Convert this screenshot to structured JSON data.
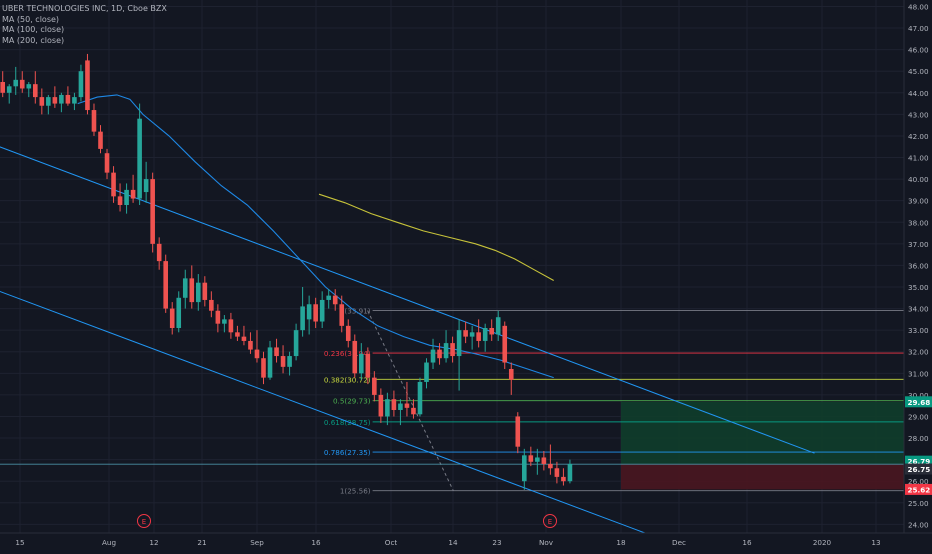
{
  "legend": {
    "symbol": "UBER TECHNOLOGIES INC, 1D, Cboe BZX",
    "indicators": [
      "MA (50, close)",
      "MA (100, close)",
      "MA (200, close)"
    ]
  },
  "colors": {
    "background": "#131722",
    "grid": "#1e2230",
    "up": "#26a69a",
    "down": "#ef5350",
    "ma50": "#2962ff",
    "ma100": "#1e88e5",
    "ma200": "#c7c33a",
    "channel": "#2196f3",
    "fib_0": "#787b86",
    "fib_0236": "#f23645",
    "fib_0382": "#c8d93f",
    "fib_05": "#4caf50",
    "fib_0618": "#089981",
    "fib_0786": "#2196f3",
    "fib_1": "#787b86",
    "profit": "#0f3d2b",
    "loss": "#4a1620",
    "axis_text": "#b2b5be"
  },
  "chart_data": {
    "type": "candlestick",
    "title": "UBER TECHNOLOGIES INC, 1D, Cboe BZX",
    "x_tick_labels": [
      "15",
      "Aug",
      "12",
      "21",
      "Sep",
      "16",
      "Oct",
      "14",
      "23",
      "Nov",
      "18",
      "Dec",
      "16",
      "2020",
      "13"
    ],
    "y_tick_labels": [
      "24.00",
      "25.00",
      "26.00",
      "27.00",
      "28.00",
      "29.00",
      "30.00",
      "31.00",
      "32.00",
      "33.00",
      "34.00",
      "35.00",
      "36.00",
      "37.00",
      "38.00",
      "39.00",
      "40.00",
      "41.00",
      "42.00",
      "43.00",
      "44.00",
      "45.00",
      "46.00",
      "47.00",
      "48.00"
    ],
    "ylim": [
      23.6,
      48.3
    ],
    "grid": true,
    "candles": [
      {
        "o": 44.5,
        "h": 45.0,
        "l": 43.8,
        "c": 44.0
      },
      {
        "o": 44.0,
        "h": 44.4,
        "l": 43.5,
        "c": 44.3
      },
      {
        "o": 44.3,
        "h": 45.2,
        "l": 43.9,
        "c": 44.6
      },
      {
        "o": 44.6,
        "h": 45.0,
        "l": 44.0,
        "c": 44.2
      },
      {
        "o": 44.2,
        "h": 44.5,
        "l": 43.8,
        "c": 44.4
      },
      {
        "o": 44.4,
        "h": 45.0,
        "l": 43.5,
        "c": 43.8
      },
      {
        "o": 43.8,
        "h": 44.2,
        "l": 43.0,
        "c": 43.4
      },
      {
        "o": 43.4,
        "h": 43.9,
        "l": 43.0,
        "c": 43.8
      },
      {
        "o": 43.8,
        "h": 44.3,
        "l": 43.3,
        "c": 43.5
      },
      {
        "o": 43.5,
        "h": 44.0,
        "l": 43.1,
        "c": 43.9
      },
      {
        "o": 43.9,
        "h": 44.3,
        "l": 43.4,
        "c": 43.5
      },
      {
        "o": 43.5,
        "h": 44.0,
        "l": 43.2,
        "c": 43.8
      },
      {
        "o": 43.8,
        "h": 45.3,
        "l": 43.6,
        "c": 45.0
      },
      {
        "o": 45.5,
        "h": 45.8,
        "l": 43.0,
        "c": 43.2
      },
      {
        "o": 43.2,
        "h": 43.5,
        "l": 42.0,
        "c": 42.2
      },
      {
        "o": 42.2,
        "h": 42.5,
        "l": 41.2,
        "c": 41.4
      },
      {
        "o": 41.2,
        "h": 41.4,
        "l": 40.0,
        "c": 40.3
      },
      {
        "o": 40.3,
        "h": 40.6,
        "l": 38.9,
        "c": 39.2
      },
      {
        "o": 39.2,
        "h": 39.8,
        "l": 38.5,
        "c": 38.8
      },
      {
        "o": 38.8,
        "h": 39.8,
        "l": 38.4,
        "c": 39.5
      },
      {
        "o": 39.5,
        "h": 40.2,
        "l": 38.9,
        "c": 39.1
      },
      {
        "o": 39.1,
        "h": 43.5,
        "l": 38.8,
        "c": 42.8
      },
      {
        "o": 39.4,
        "h": 40.8,
        "l": 38.9,
        "c": 40.0
      },
      {
        "o": 40.0,
        "h": 40.3,
        "l": 36.6,
        "c": 37.0
      },
      {
        "o": 37.0,
        "h": 37.3,
        "l": 35.8,
        "c": 36.2
      },
      {
        "o": 36.2,
        "h": 36.5,
        "l": 33.8,
        "c": 34.0
      },
      {
        "o": 34.0,
        "h": 34.3,
        "l": 32.8,
        "c": 33.1
      },
      {
        "o": 33.1,
        "h": 34.8,
        "l": 32.9,
        "c": 34.5
      },
      {
        "o": 34.5,
        "h": 35.8,
        "l": 34.0,
        "c": 35.4
      },
      {
        "o": 35.4,
        "h": 36.0,
        "l": 34.0,
        "c": 34.3
      },
      {
        "o": 34.3,
        "h": 35.6,
        "l": 33.9,
        "c": 35.2
      },
      {
        "o": 35.2,
        "h": 35.5,
        "l": 34.1,
        "c": 34.4
      },
      {
        "o": 34.4,
        "h": 34.8,
        "l": 33.6,
        "c": 33.9
      },
      {
        "o": 33.9,
        "h": 34.2,
        "l": 32.9,
        "c": 33.3
      },
      {
        "o": 33.3,
        "h": 33.7,
        "l": 32.9,
        "c": 33.5
      },
      {
        "o": 33.5,
        "h": 33.8,
        "l": 32.6,
        "c": 32.9
      },
      {
        "o": 32.9,
        "h": 33.2,
        "l": 32.5,
        "c": 32.7
      },
      {
        "o": 32.7,
        "h": 33.2,
        "l": 32.3,
        "c": 32.5
      },
      {
        "o": 32.5,
        "h": 32.9,
        "l": 31.9,
        "c": 32.1
      },
      {
        "o": 32.1,
        "h": 33.0,
        "l": 31.5,
        "c": 31.7
      },
      {
        "o": 31.7,
        "h": 32.0,
        "l": 30.5,
        "c": 30.8
      },
      {
        "o": 30.8,
        "h": 32.5,
        "l": 30.7,
        "c": 32.2
      },
      {
        "o": 32.2,
        "h": 32.6,
        "l": 31.5,
        "c": 31.8
      },
      {
        "o": 31.8,
        "h": 32.3,
        "l": 31.0,
        "c": 31.3
      },
      {
        "o": 31.3,
        "h": 32.0,
        "l": 30.9,
        "c": 31.8
      },
      {
        "o": 31.8,
        "h": 33.3,
        "l": 31.6,
        "c": 33.0
      },
      {
        "o": 33.0,
        "h": 35.0,
        "l": 32.7,
        "c": 34.1
      },
      {
        "o": 33.5,
        "h": 34.6,
        "l": 32.8,
        "c": 34.2
      },
      {
        "o": 34.2,
        "h": 34.5,
        "l": 33.1,
        "c": 33.4
      },
      {
        "o": 33.4,
        "h": 34.8,
        "l": 33.1,
        "c": 34.4
      },
      {
        "o": 34.4,
        "h": 34.9,
        "l": 34.0,
        "c": 34.6
      },
      {
        "o": 34.6,
        "h": 34.9,
        "l": 33.9,
        "c": 34.2
      },
      {
        "o": 34.2,
        "h": 34.6,
        "l": 32.9,
        "c": 33.2
      },
      {
        "o": 33.2,
        "h": 33.5,
        "l": 32.2,
        "c": 32.5
      },
      {
        "o": 32.5,
        "h": 32.8,
        "l": 30.8,
        "c": 31.0
      },
      {
        "o": 31.0,
        "h": 32.4,
        "l": 30.7,
        "c": 31.9
      },
      {
        "o": 31.9,
        "h": 32.2,
        "l": 30.5,
        "c": 30.8
      },
      {
        "o": 30.8,
        "h": 31.1,
        "l": 29.7,
        "c": 30.0
      },
      {
        "o": 30.0,
        "h": 30.3,
        "l": 28.7,
        "c": 29.0
      },
      {
        "o": 29.0,
        "h": 30.1,
        "l": 28.6,
        "c": 29.8
      },
      {
        "o": 29.8,
        "h": 30.2,
        "l": 29.0,
        "c": 29.3
      },
      {
        "o": 29.3,
        "h": 29.8,
        "l": 28.6,
        "c": 29.6
      },
      {
        "o": 29.6,
        "h": 30.6,
        "l": 29.0,
        "c": 29.4
      },
      {
        "o": 29.4,
        "h": 29.8,
        "l": 28.9,
        "c": 29.1
      },
      {
        "o": 29.1,
        "h": 30.8,
        "l": 29.0,
        "c": 30.6
      },
      {
        "o": 30.6,
        "h": 31.7,
        "l": 30.3,
        "c": 31.5
      },
      {
        "o": 31.5,
        "h": 32.6,
        "l": 31.2,
        "c": 32.1
      },
      {
        "o": 32.1,
        "h": 32.4,
        "l": 31.4,
        "c": 31.7
      },
      {
        "o": 31.7,
        "h": 33.0,
        "l": 31.5,
        "c": 32.4
      },
      {
        "o": 32.4,
        "h": 32.7,
        "l": 31.5,
        "c": 31.8
      },
      {
        "o": 31.8,
        "h": 33.5,
        "l": 30.2,
        "c": 33.0
      },
      {
        "o": 33.0,
        "h": 33.4,
        "l": 32.4,
        "c": 32.7
      },
      {
        "o": 32.7,
        "h": 33.2,
        "l": 32.1,
        "c": 32.9
      },
      {
        "o": 32.9,
        "h": 33.5,
        "l": 32.2,
        "c": 32.5
      },
      {
        "o": 32.5,
        "h": 33.3,
        "l": 32.0,
        "c": 33.1
      },
      {
        "o": 33.1,
        "h": 33.5,
        "l": 32.5,
        "c": 32.8
      },
      {
        "o": 32.8,
        "h": 33.9,
        "l": 32.5,
        "c": 33.6
      },
      {
        "o": 33.2,
        "h": 33.4,
        "l": 31.2,
        "c": 31.5
      },
      {
        "o": 31.2,
        "h": 31.5,
        "l": 30.0,
        "c": 30.7
      },
      {
        "o": 29.0,
        "h": 29.2,
        "l": 27.3,
        "c": 27.6
      },
      {
        "o": 26.0,
        "h": 27.5,
        "l": 25.6,
        "c": 27.2
      },
      {
        "o": 27.2,
        "h": 27.6,
        "l": 26.7,
        "c": 26.9
      },
      {
        "o": 26.9,
        "h": 27.5,
        "l": 26.3,
        "c": 27.1
      },
      {
        "o": 27.1,
        "h": 27.4,
        "l": 26.5,
        "c": 26.8
      },
      {
        "o": 26.8,
        "h": 27.7,
        "l": 26.3,
        "c": 26.6
      },
      {
        "o": 26.6,
        "h": 26.9,
        "l": 25.9,
        "c": 26.2
      },
      {
        "o": 26.2,
        "h": 26.6,
        "l": 25.8,
        "c": 26.0
      },
      {
        "o": 26.0,
        "h": 27.0,
        "l": 25.9,
        "c": 26.8
      }
    ],
    "moving_averages": [
      {
        "name": "MA (100, close)",
        "points": [
          {
            "i": 12,
            "v": 43.5
          },
          {
            "i": 15,
            "v": 43.8
          },
          {
            "i": 18,
            "v": 43.9
          },
          {
            "i": 20,
            "v": 43.7
          },
          {
            "i": 22,
            "v": 43.0
          },
          {
            "i": 26,
            "v": 42.0
          },
          {
            "i": 30,
            "v": 40.8
          },
          {
            "i": 34,
            "v": 39.7
          },
          {
            "i": 38,
            "v": 38.8
          },
          {
            "i": 42,
            "v": 37.6
          },
          {
            "i": 46,
            "v": 36.3
          },
          {
            "i": 50,
            "v": 35.0
          },
          {
            "i": 54,
            "v": 34.0
          },
          {
            "i": 58,
            "v": 33.2
          },
          {
            "i": 62,
            "v": 32.7
          },
          {
            "i": 66,
            "v": 32.3
          },
          {
            "i": 70,
            "v": 32.1
          },
          {
            "i": 73,
            "v": 31.9
          },
          {
            "i": 77,
            "v": 31.6
          },
          {
            "i": 81,
            "v": 31.2
          },
          {
            "i": 85,
            "v": 30.8
          }
        ]
      },
      {
        "name": "MA (200, close)",
        "points": [
          {
            "i": 49,
            "v": 39.3
          },
          {
            "i": 53,
            "v": 38.9
          },
          {
            "i": 57,
            "v": 38.4
          },
          {
            "i": 61,
            "v": 38.0
          },
          {
            "i": 65,
            "v": 37.6
          },
          {
            "i": 69,
            "v": 37.3
          },
          {
            "i": 73,
            "v": 37.0
          },
          {
            "i": 76,
            "v": 36.7
          },
          {
            "i": 79,
            "v": 36.3
          },
          {
            "i": 82,
            "v": 35.8
          },
          {
            "i": 85,
            "v": 35.3
          }
        ]
      }
    ],
    "channel_lines": [
      {
        "from": {
          "i": 0,
          "v": 41.5
        },
        "to": {
          "i": 125,
          "v": 27.3
        }
      },
      {
        "from": {
          "i": 0,
          "v": 34.8
        },
        "to": {
          "i": 99,
          "v": 23.6
        }
      }
    ],
    "fibonacci": {
      "levels": [
        {
          "ratio": "0",
          "label": "0(33.91)",
          "price": 33.91,
          "color_key": "fib_0"
        },
        {
          "ratio": "0.236",
          "label": "0.236(31.94)",
          "price": 31.94,
          "color_key": "fib_0236"
        },
        {
          "ratio": "0.382",
          "label": "0.382(30.72)",
          "price": 30.72,
          "color_key": "fib_0382"
        },
        {
          "ratio": "0.5",
          "label": "0.5(29.73)",
          "price": 29.73,
          "color_key": "fib_05"
        },
        {
          "ratio": "0.618",
          "label": "0.618(28.75)",
          "price": 28.75,
          "color_key": "fib_0618"
        },
        {
          "ratio": "0.786",
          "label": "0.786(27.35)",
          "price": 27.35,
          "color_key": "fib_0786"
        },
        {
          "ratio": "1",
          "label": "1(25.56)",
          "price": 25.56,
          "color_key": "fib_1"
        }
      ],
      "trend_start": {
        "i": 56,
        "v": 33.91
      },
      "trend_end": {
        "i": 65,
        "v": 25.56
      }
    },
    "position": {
      "entry": 26.79,
      "target": 29.68,
      "stop": 25.62,
      "start_index": 88
    },
    "horizontal_line": 26.79,
    "price_badges": [
      {
        "label": "29.68",
        "price": 29.68,
        "color": "#089981"
      },
      {
        "label": "26.79",
        "price": 26.79,
        "color": "#089981"
      },
      {
        "label": "26.75",
        "price": 26.75,
        "color": "#2a2e39"
      },
      {
        "label": "25.62",
        "price": 25.62,
        "color": "#f23645"
      }
    ],
    "event_markers": [
      {
        "label": "E",
        "index": 17
      },
      {
        "label": "E",
        "index": 69
      }
    ]
  }
}
